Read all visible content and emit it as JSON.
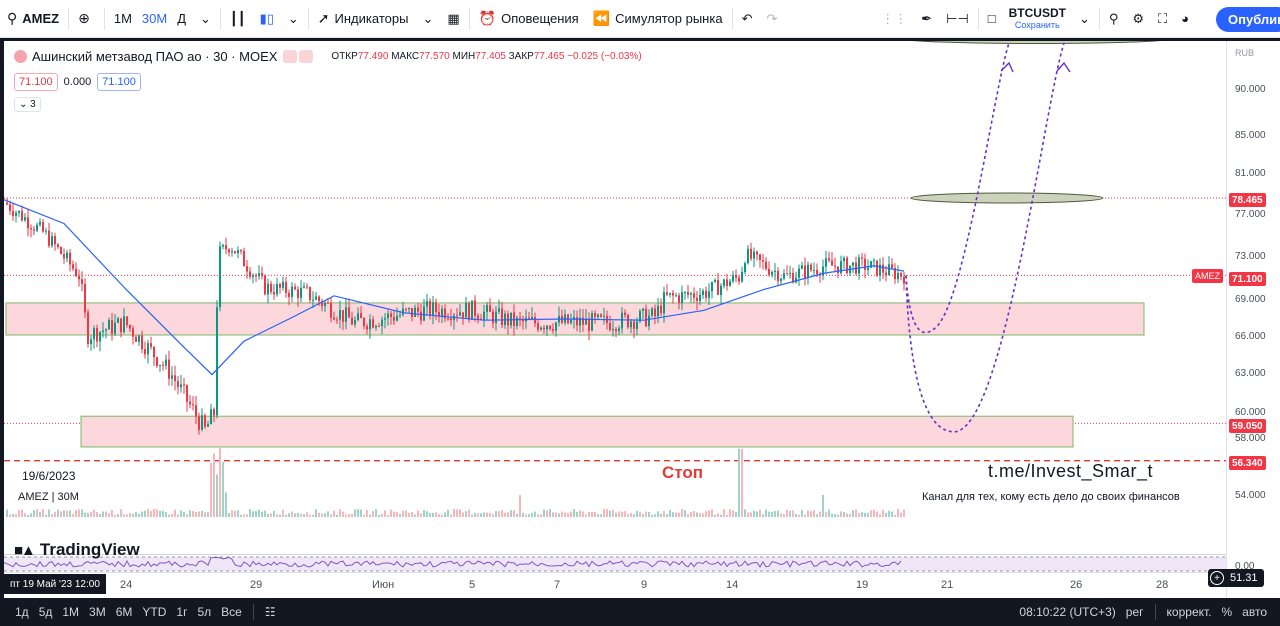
{
  "toolbar": {
    "search_label": "AMEZ",
    "intervals": [
      "1M",
      "30M",
      "Д"
    ],
    "indicators_label": "Индикаторы",
    "alerts_label": "Оповещения",
    "replay_label": "Симулятор рынка",
    "layout_symbol": "BTCUSDT",
    "layout_status": "Сохранить",
    "publish_label": "Опубликовать"
  },
  "legend": {
    "title": "Ашинский метзавод ПАО ао · 30 · MOEX",
    "open_label": "ОТКР",
    "open": "77.490",
    "high_label": "МАКС",
    "high": "77.570",
    "low_label": "МИН",
    "low": "77.405",
    "close_label": "ЗАКР",
    "close": "77.465",
    "change": "−0.025 (−0.03%)",
    "input_bid": "71.100",
    "input_spread": "0.000",
    "input_ask": "71.100",
    "collapsed_count": "3"
  },
  "chart": {
    "date_label": "19/6/2023",
    "volume_label": "AMEZ | 30M",
    "stop_label": "Стоп",
    "channel": "t.me/Invest_Smar_t",
    "tagline": "Канал для тех, кому есть дело до своих финансов",
    "brand": "TradingView",
    "currency": "RUB"
  },
  "price_axis": {
    "ticks": [
      "90.000",
      "85.000",
      "81.000",
      "77.000",
      "73.000",
      "69.000",
      "66.000",
      "63.000",
      "60.000",
      "58.000",
      "54.000"
    ],
    "tags": {
      "level_high": "78.465",
      "current": "71.100",
      "level_low": "59.050",
      "stop": "56.340"
    },
    "symbol_tag": "AMEZ",
    "rsi_value": "51.31",
    "lower_tick": "0.00"
  },
  "time_axis": {
    "labels": [
      "24",
      "29",
      "Июн",
      "5",
      "7",
      "9",
      "14",
      "19",
      "21",
      "26",
      "28"
    ],
    "cursor": "пт 19 Май '23   12:00"
  },
  "bottom": {
    "ranges": [
      "1д",
      "5д",
      "1М",
      "3М",
      "6М",
      "YTD",
      "1г",
      "5л",
      "Все"
    ],
    "clock": "08:10:22 (UTC+3)",
    "session": "рег",
    "adjust": "коррект.",
    "percent": "%",
    "auto": "авто"
  },
  "colors": {
    "accent": "#2962ff",
    "down": "#f23645",
    "up": "#089981",
    "zone_fill": "#fcd7dc",
    "ma_line": "#2962ff",
    "projection": "#6a2fc4"
  }
}
